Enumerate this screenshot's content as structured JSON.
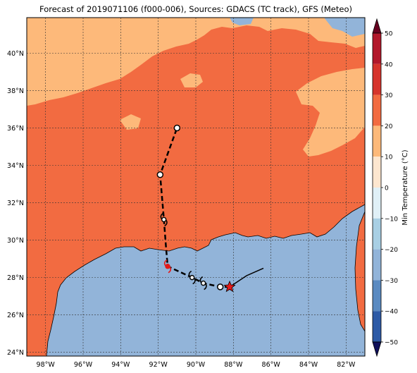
{
  "title": "Forecast of 2019071106 (f000-006), Sources: GDACS (TC track), GFS (Meteo)",
  "map": {
    "lon_range": [
      -99,
      -81
    ],
    "lat_range": [
      23.8,
      41.9
    ],
    "lon_ticks": [
      {
        "value": -98,
        "label": "98°W"
      },
      {
        "value": -96,
        "label": "96°W"
      },
      {
        "value": -94,
        "label": "94°W"
      },
      {
        "value": -92,
        "label": "92°W"
      },
      {
        "value": -90,
        "label": "90°W"
      },
      {
        "value": -88,
        "label": "88°W"
      },
      {
        "value": -86,
        "label": "86°W"
      },
      {
        "value": -84,
        "label": "84°W"
      },
      {
        "value": -82,
        "label": "82°W"
      }
    ],
    "lat_ticks": [
      {
        "value": 24,
        "label": "24°N"
      },
      {
        "value": 26,
        "label": "26°N"
      },
      {
        "value": 28,
        "label": "28°N"
      },
      {
        "value": 30,
        "label": "30°N"
      },
      {
        "value": 32,
        "label": "32°N"
      },
      {
        "value": 34,
        "label": "34°N"
      },
      {
        "value": 36,
        "label": "36°N"
      },
      {
        "value": 38,
        "label": "38°N"
      },
      {
        "value": 40,
        "label": "40°N"
      }
    ],
    "colors": {
      "ocean": "#92b4d9",
      "band_20_30": "#f26b41",
      "band_10_20": "#fdb97a",
      "coast": "#000000",
      "grid": "#333333"
    },
    "track_points": [
      {
        "lon": -88.2,
        "lat": 27.5,
        "symbol": "star"
      },
      {
        "lon": -88.7,
        "lat": 27.5,
        "symbol": "circle"
      },
      {
        "lon": -89.6,
        "lat": 27.7,
        "symbol": "storm"
      },
      {
        "lon": -90.2,
        "lat": 28.0,
        "symbol": "storm"
      },
      {
        "lon": -91.5,
        "lat": 28.6,
        "symbol": "storm-red"
      },
      {
        "lon": -91.6,
        "lat": 29.8,
        "symbol": "none"
      },
      {
        "lon": -91.7,
        "lat": 31.1,
        "symbol": "storm"
      },
      {
        "lon": -91.9,
        "lat": 33.5,
        "symbol": "circle"
      },
      {
        "lon": -91.0,
        "lat": 36.0,
        "symbol": "circle"
      }
    ],
    "past_track": [
      {
        "lon": -86.4,
        "lat": 28.5
      },
      {
        "lon": -87.3,
        "lat": 28.1
      },
      {
        "lon": -87.9,
        "lat": 27.7
      },
      {
        "lon": -88.2,
        "lat": 27.5
      }
    ]
  },
  "colorbar": {
    "label": "Min Temperature (°C)",
    "ticks": [
      "50",
      "40",
      "30",
      "20",
      "10",
      "0",
      "−10",
      "−20",
      "−30",
      "−40",
      "−50"
    ],
    "colors": [
      "#67001f",
      "#b2182b",
      "#d6342c",
      "#f26b41",
      "#fdb97a",
      "#fde6cf",
      "#e0f0f7",
      "#a8cfe4",
      "#92b4d9",
      "#5a8ac1",
      "#2d5aa6",
      "#1c2a84",
      "#10105a"
    ]
  }
}
